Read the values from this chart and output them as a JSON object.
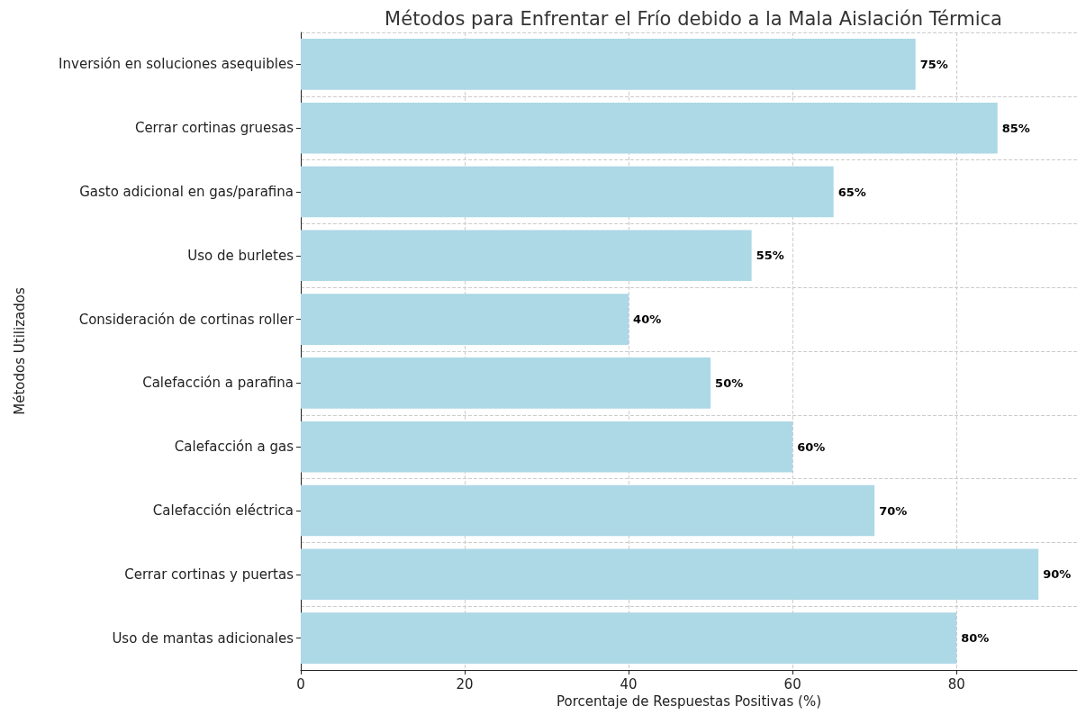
{
  "chart_data": {
    "type": "bar",
    "orientation": "horizontal",
    "title": "Métodos para Enfrentar el Frío debido a la Mala Aislación Térmica",
    "xlabel": "Porcentaje de Respuestas Positivas (%)",
    "ylabel": "Métodos Utilizados",
    "categories": [
      "Inversión en soluciones asequibles",
      "Cerrar cortinas gruesas",
      "Gasto adicional en gas/parafina",
      "Uso de burletes",
      "Consideración de cortinas roller",
      "Calefacción a parafina",
      "Calefacción a gas",
      "Calefacción eléctrica",
      "Cerrar cortinas y puertas",
      "Uso de mantas adicionales"
    ],
    "values": [
      75,
      85,
      65,
      55,
      40,
      50,
      60,
      70,
      90,
      80
    ],
    "value_labels": [
      "75%",
      "85%",
      "65%",
      "55%",
      "40%",
      "50%",
      "60%",
      "70%",
      "90%",
      "80%"
    ],
    "color": "#add8e6",
    "xlim": [
      0,
      94.7
    ],
    "xticks": [
      0,
      20,
      40,
      60,
      80
    ],
    "grid": true
  }
}
